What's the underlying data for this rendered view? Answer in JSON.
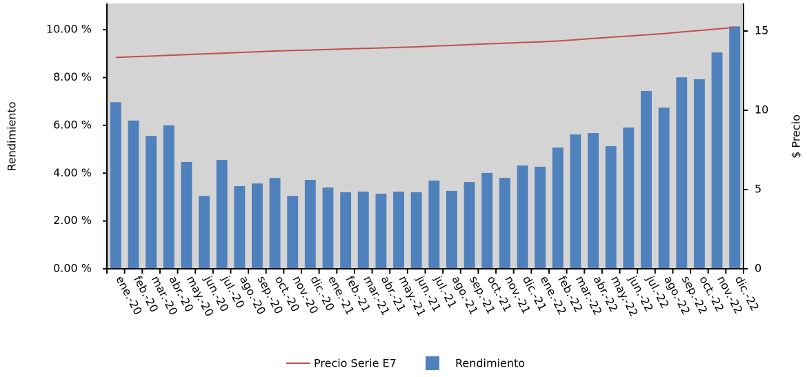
{
  "chart_data": {
    "type": "bar",
    "y_label": "Rendimiento",
    "y2_label": "$ Precio",
    "categories": [
      "ene.-20",
      "feb.-20",
      "mar.-20",
      "abr.-20",
      "may.-20",
      "jun.-20",
      "jul.-20",
      "ago.-20",
      "sep.-20",
      "oct.-20",
      "nov.-20",
      "dic.-20",
      "ene.-21",
      "feb.-21",
      "mar.-21",
      "abr.-21",
      "may.-21",
      "jun.-21",
      "jul.-21",
      "ago.-21",
      "sep.-21",
      "oct.-21",
      "nov.-21",
      "dic.-21",
      "ene.-22",
      "feb.-22",
      "mar.-22",
      "abr.-22",
      "may.-22",
      "jun.-22",
      "jul.-22",
      "ago.-22",
      "sep.-22",
      "oct.-22",
      "nov.-22",
      "dic.-22"
    ],
    "series": [
      {
        "name": "Precio Serie E7",
        "type": "line",
        "axis": "y2",
        "color": "#c0504d",
        "values": [
          13.33,
          13.38,
          13.42,
          13.47,
          13.51,
          13.56,
          13.6,
          13.65,
          13.69,
          13.74,
          13.77,
          13.8,
          13.84,
          13.87,
          13.9,
          13.93,
          13.97,
          14.0,
          14.05,
          14.09,
          14.14,
          14.19,
          14.23,
          14.28,
          14.32,
          14.37,
          14.45,
          14.53,
          14.61,
          14.68,
          14.76,
          14.84,
          14.94,
          15.03,
          15.13,
          15.22
        ]
      },
      {
        "name": "Rendimiento",
        "type": "bar",
        "color": "#4f81bd",
        "values": [
          6.97,
          6.2,
          5.56,
          6.0,
          4.47,
          3.05,
          4.55,
          3.46,
          3.57,
          3.8,
          3.05,
          3.72,
          3.4,
          3.2,
          3.23,
          3.14,
          3.23,
          3.2,
          3.69,
          3.26,
          3.63,
          4.01,
          3.8,
          4.32,
          4.27,
          5.07,
          5.62,
          5.68,
          5.13,
          5.91,
          7.44,
          6.74,
          8.01,
          7.93,
          9.05,
          10.14
        ]
      }
    ],
    "ylim": [
      0,
      11.1
    ],
    "yticks": [
      {
        "value": 0,
        "label": "0.00 %"
      },
      {
        "value": 2,
        "label": "2.00 %"
      },
      {
        "value": 4,
        "label": "4.00 %"
      },
      {
        "value": 6,
        "label": "6.00 %"
      },
      {
        "value": 8,
        "label": "8.00 %"
      },
      {
        "value": 10,
        "label": "10.00 %"
      }
    ],
    "y2lim": [
      0,
      16.74
    ],
    "y2ticks": [
      0,
      5,
      10,
      15
    ],
    "plot_background": "#d4d4d4"
  }
}
